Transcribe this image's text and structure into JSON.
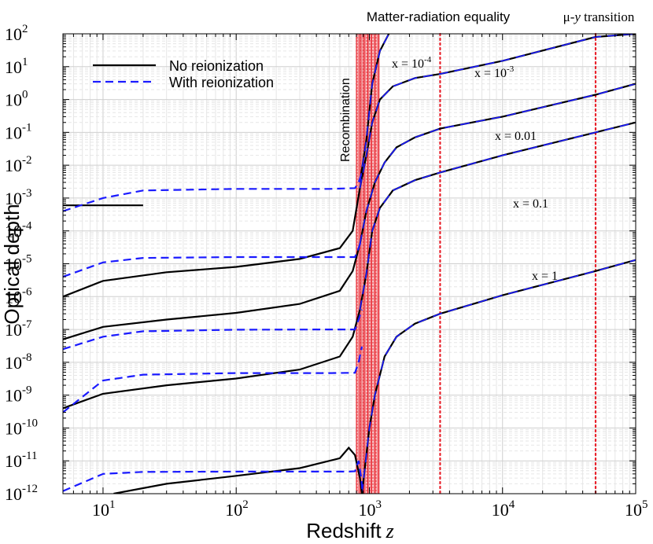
{
  "chart_data": {
    "type": "line",
    "title": "",
    "xlabel": "Redshift",
    "xlabel_var": "z",
    "ylabel": "Optical depth",
    "xscale": "log",
    "yscale": "log",
    "xlim": [
      5,
      100000
    ],
    "ylim": [
      1e-12,
      100
    ],
    "grid": true,
    "x_ticks": [
      {
        "value": 10,
        "base": "10",
        "exp": "1"
      },
      {
        "value": 100,
        "base": "10",
        "exp": "2"
      },
      {
        "value": 1000,
        "base": "10",
        "exp": "3"
      },
      {
        "value": 10000,
        "base": "10",
        "exp": "4"
      },
      {
        "value": 100000,
        "base": "10",
        "exp": "5"
      }
    ],
    "y_ticks": [
      {
        "value": 100,
        "base": "10",
        "exp": "2"
      },
      {
        "value": 10,
        "base": "10",
        "exp": "1"
      },
      {
        "value": 1,
        "base": "10",
        "exp": "0"
      },
      {
        "value": 0.1,
        "base": "10",
        "exp": "-1"
      },
      {
        "value": 0.01,
        "base": "10",
        "exp": "-2"
      },
      {
        "value": 0.001,
        "base": "10",
        "exp": "-3"
      },
      {
        "value": 0.0001,
        "base": "10",
        "exp": "-4"
      },
      {
        "value": 1e-05,
        "base": "10",
        "exp": "-5"
      },
      {
        "value": 1e-06,
        "base": "10",
        "exp": "-6"
      },
      {
        "value": 1e-07,
        "base": "10",
        "exp": "-7"
      },
      {
        "value": 1e-08,
        "base": "10",
        "exp": "-8"
      },
      {
        "value": 1e-09,
        "base": "10",
        "exp": "-9"
      },
      {
        "value": 1e-10,
        "base": "10",
        "exp": "-10"
      },
      {
        "value": 1e-11,
        "base": "10",
        "exp": "-11"
      },
      {
        "value": 1e-12,
        "base": "10",
        "exp": "-12"
      }
    ],
    "legend": {
      "placement": "top-left",
      "entries": [
        {
          "label": "No reionization",
          "color": "#000000",
          "style": "solid"
        },
        {
          "label": "With reionization",
          "color": "#1a1aff",
          "style": "dashed"
        }
      ]
    },
    "recombination_band": {
      "z_min": 800,
      "z_max": 1180,
      "label": "Recombination",
      "color": "#e8202a"
    },
    "vertical_markers": [
      {
        "z": 3400,
        "label": "Matter-radiation equality",
        "color": "#e8202a",
        "style": "dotted"
      },
      {
        "z": 50000,
        "label_prefix": "μ-",
        "label_var": "y",
        "label_suffix": " transition",
        "color": "#e8202a",
        "style": "dotted"
      }
    ],
    "series": [
      {
        "name": "x = 1",
        "label_base": "x = 1",
        "label_exp": "",
        "no_reion": [
          [
            12,
            1e-12
          ],
          [
            30,
            2e-12
          ],
          [
            100,
            3.5e-12
          ],
          [
            300,
            6e-12
          ],
          [
            600,
            1.2e-11
          ],
          [
            700,
            2.5e-11
          ],
          [
            780,
            1.5e-11
          ],
          [
            850,
            3e-12
          ],
          [
            880,
            1e-12
          ]
        ],
        "with_reion": [
          [
            5,
            1.2e-12
          ],
          [
            10,
            4e-12
          ],
          [
            20,
            4.6e-12
          ],
          [
            100,
            4.7e-12
          ],
          [
            400,
            4.7e-12
          ],
          [
            700,
            4.7e-12
          ],
          [
            780,
            4.8e-12
          ],
          [
            830,
            1e-11
          ],
          [
            870,
            3e-12
          ],
          [
            890,
            1e-12
          ]
        ],
        "high_z": [
          [
            880,
            1e-12
          ],
          [
            1000,
            1e-10
          ],
          [
            1100,
            1e-09
          ],
          [
            1300,
            1.5e-08
          ],
          [
            1600,
            6e-08
          ],
          [
            2200,
            1.5e-07
          ],
          [
            3400,
            3e-07
          ],
          [
            10000,
            1.1e-06
          ],
          [
            50000,
            6e-06
          ],
          [
            100000,
            1.3e-05
          ]
        ]
      },
      {
        "name": "x = 0.1",
        "label_base": "x = 0.1",
        "label_exp": "",
        "no_reion": [
          [
            5,
            4e-10
          ],
          [
            10,
            1.1e-09
          ],
          [
            30,
            2e-09
          ],
          [
            100,
            3.2e-09
          ],
          [
            300,
            6e-09
          ],
          [
            600,
            1.5e-08
          ],
          [
            750,
            6e-08
          ],
          [
            850,
            4e-07
          ]
        ],
        "with_reion": [
          [
            5,
            3e-10
          ],
          [
            10,
            2.8e-09
          ],
          [
            20,
            4.2e-09
          ],
          [
            100,
            4.7e-09
          ],
          [
            500,
            4.7e-09
          ],
          [
            780,
            4.8e-09
          ],
          [
            830,
            1e-08
          ],
          [
            880,
            3e-08
          ]
        ],
        "high_z": [
          [
            850,
            4e-07
          ],
          [
            950,
            5e-06
          ],
          [
            1050,
            0.0001
          ],
          [
            1200,
            0.0005
          ],
          [
            1500,
            0.0017
          ],
          [
            2200,
            0.0035
          ],
          [
            3400,
            0.006
          ],
          [
            10000,
            0.02
          ],
          [
            50000,
            0.1
          ],
          [
            100000,
            0.2
          ]
        ]
      },
      {
        "name": "x = 0.01",
        "label_base": "x = 0.01",
        "label_exp": "",
        "no_reion": [
          [
            5,
            5e-08
          ],
          [
            10,
            1.2e-07
          ],
          [
            30,
            2e-07
          ],
          [
            100,
            3.2e-07
          ],
          [
            300,
            6e-07
          ],
          [
            600,
            1.5e-06
          ],
          [
            750,
            6e-06
          ],
          [
            850,
            4e-05
          ]
        ],
        "with_reion": [
          [
            5,
            2.5e-08
          ],
          [
            10,
            6e-08
          ],
          [
            20,
            8.8e-08
          ],
          [
            100,
            9.8e-08
          ],
          [
            500,
            1e-07
          ],
          [
            780,
            1e-07
          ],
          [
            830,
            2e-07
          ],
          [
            880,
            4e-07
          ]
        ],
        "high_z": [
          [
            850,
            4e-05
          ],
          [
            950,
            0.0004
          ],
          [
            1100,
            0.003
          ],
          [
            1300,
            0.012
          ],
          [
            1600,
            0.035
          ],
          [
            2200,
            0.07
          ],
          [
            3400,
            0.13
          ],
          [
            10000,
            0.3
          ],
          [
            50000,
            1.4
          ],
          [
            100000,
            3
          ]
        ]
      },
      {
        "name": "x = 1e-3",
        "label_base": "x = 10",
        "label_exp": "-3",
        "no_reion": [
          [
            5,
            1e-06
          ],
          [
            10,
            3e-06
          ],
          [
            30,
            5.5e-06
          ],
          [
            100,
            8e-06
          ],
          [
            300,
            1.4e-05
          ],
          [
            600,
            3e-05
          ],
          [
            750,
            0.0001
          ],
          [
            850,
            0.002
          ]
        ],
        "with_reion": [
          [
            5,
            4e-06
          ],
          [
            10,
            1.1e-05
          ],
          [
            20,
            1.5e-05
          ],
          [
            100,
            1.6e-05
          ],
          [
            500,
            1.6e-05
          ],
          [
            780,
            1.6e-05
          ],
          [
            830,
            3e-05
          ],
          [
            880,
            6e-05
          ]
        ],
        "high_z": [
          [
            850,
            0.002
          ],
          [
            950,
            0.02
          ],
          [
            1050,
            0.2
          ],
          [
            1200,
            1
          ],
          [
            1500,
            2.5
          ],
          [
            2200,
            4.5
          ],
          [
            3400,
            6
          ],
          [
            10000,
            15
          ],
          [
            50000,
            80
          ],
          [
            100000,
            100
          ]
        ]
      },
      {
        "name": "x = 1e-4",
        "label_base": "x = 10",
        "label_exp": "-4",
        "no_reion": [
          [
            5,
            0.0006
          ],
          [
            20,
            0.0006
          ]
        ],
        "with_reion": [
          [
            5,
            0.0004
          ],
          [
            10,
            0.001
          ],
          [
            20,
            0.0017
          ],
          [
            100,
            0.0019
          ],
          [
            500,
            0.0019
          ],
          [
            780,
            0.002
          ],
          [
            830,
            0.003
          ],
          [
            880,
            0.006
          ]
        ],
        "high_z": [
          [
            850,
            0.003
          ],
          [
            950,
            0.06
          ],
          [
            1050,
            3
          ],
          [
            1200,
            30
          ],
          [
            1400,
            100
          ]
        ]
      }
    ]
  }
}
